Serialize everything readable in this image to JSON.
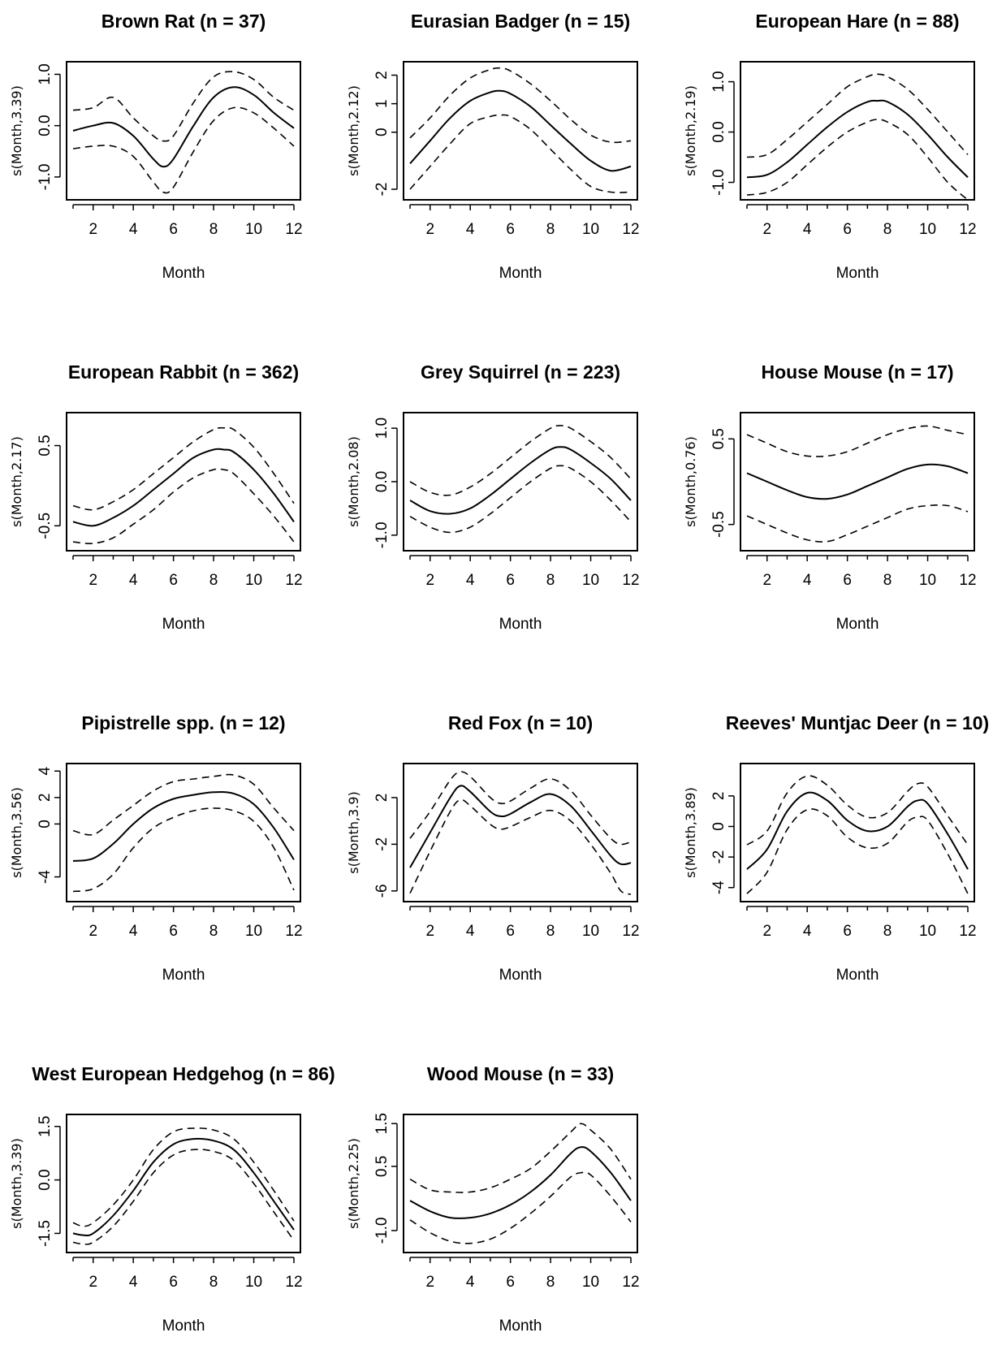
{
  "colors": {
    "background": "#ffffff",
    "ink": "#000000"
  },
  "chart_data": [
    {
      "type": "line",
      "title": "Brown Rat (n = 37)",
      "xlabel": "Month",
      "ylabel": "s(Month,3.39)",
      "xlim": [
        1,
        12
      ],
      "ylim": [
        -1.35,
        1.15
      ],
      "x_ticks": [
        2,
        4,
        6,
        8,
        10,
        12
      ],
      "y_ticks": [
        -1.0,
        0.0,
        1.0
      ],
      "y_tick_labels": [
        "-1.0",
        "0.0",
        "1.0"
      ],
      "grid": false,
      "legend": "none",
      "x": [
        1,
        2,
        3,
        4,
        5,
        5.5,
        6,
        7,
        8,
        9,
        10,
        11,
        12
      ],
      "series": [
        {
          "role": "fit",
          "style": "solid",
          "values": [
            -0.1,
            0.0,
            0.05,
            -0.2,
            -0.65,
            -0.8,
            -0.65,
            0.0,
            0.55,
            0.75,
            0.6,
            0.25,
            -0.05
          ]
        },
        {
          "role": "upper",
          "style": "dashed",
          "values": [
            0.3,
            0.35,
            0.55,
            0.15,
            -0.2,
            -0.3,
            -0.2,
            0.45,
            0.95,
            1.05,
            0.9,
            0.55,
            0.3
          ]
        },
        {
          "role": "lower",
          "style": "dashed",
          "values": [
            -0.45,
            -0.4,
            -0.4,
            -0.6,
            -1.1,
            -1.3,
            -1.2,
            -0.5,
            0.1,
            0.35,
            0.25,
            -0.05,
            -0.4
          ]
        }
      ]
    },
    {
      "type": "line",
      "title": "Eurasian Badger (n = 15)",
      "xlabel": "Month",
      "ylabel": "s(Month,2.12)",
      "xlim": [
        1,
        12
      ],
      "ylim": [
        -2.2,
        2.3
      ],
      "x_ticks": [
        2,
        4,
        6,
        8,
        10,
        12
      ],
      "y_ticks": [
        -2,
        0,
        1,
        2
      ],
      "y_tick_labels": [
        "-2",
        "0",
        "1",
        "2"
      ],
      "grid": false,
      "legend": "none",
      "x": [
        1,
        2,
        3,
        4,
        5,
        5.5,
        6,
        7,
        8,
        9,
        10,
        11,
        12
      ],
      "series": [
        {
          "role": "fit",
          "style": "solid",
          "values": [
            -1.1,
            -0.3,
            0.5,
            1.1,
            1.4,
            1.45,
            1.35,
            0.9,
            0.25,
            -0.4,
            -1.0,
            -1.35,
            -1.2
          ]
        },
        {
          "role": "upper",
          "style": "dashed",
          "values": [
            -0.2,
            0.5,
            1.3,
            1.9,
            2.2,
            2.25,
            2.15,
            1.7,
            1.1,
            0.45,
            -0.1,
            -0.35,
            -0.3
          ]
        },
        {
          "role": "lower",
          "style": "dashed",
          "values": [
            -2.0,
            -1.2,
            -0.4,
            0.3,
            0.55,
            0.6,
            0.55,
            0.1,
            -0.6,
            -1.3,
            -1.9,
            -2.1,
            -2.1
          ]
        }
      ]
    },
    {
      "type": "line",
      "title": "European Hare (n = 88)",
      "xlabel": "Month",
      "ylabel": "s(Month,2.19)",
      "xlim": [
        1,
        12
      ],
      "ylim": [
        -1.25,
        1.3
      ],
      "x_ticks": [
        2,
        4,
        6,
        8,
        10,
        12
      ],
      "y_ticks": [
        -1.0,
        0.0,
        1.0
      ],
      "y_tick_labels": [
        "-1.0",
        "0.0",
        "1.0"
      ],
      "grid": false,
      "legend": "none",
      "x": [
        1,
        2,
        3,
        4,
        5,
        6,
        7,
        7.5,
        8,
        9,
        10,
        11,
        12
      ],
      "series": [
        {
          "role": "fit",
          "style": "solid",
          "values": [
            -0.9,
            -0.85,
            -0.6,
            -0.25,
            0.1,
            0.4,
            0.6,
            0.62,
            0.6,
            0.35,
            -0.05,
            -0.5,
            -0.9
          ]
        },
        {
          "role": "upper",
          "style": "dashed",
          "values": [
            -0.5,
            -0.45,
            -0.15,
            0.2,
            0.55,
            0.9,
            1.1,
            1.15,
            1.1,
            0.85,
            0.45,
            0.0,
            -0.45
          ]
        },
        {
          "role": "lower",
          "style": "dashed",
          "values": [
            -1.25,
            -1.2,
            -1.0,
            -0.65,
            -0.3,
            0.0,
            0.2,
            0.25,
            0.2,
            -0.05,
            -0.5,
            -1.0,
            -1.35
          ]
        }
      ]
    },
    {
      "type": "line",
      "title": "European Rabbit (n = 362)",
      "xlabel": "Month",
      "ylabel": "s(Month,2.17)",
      "xlim": [
        1,
        12
      ],
      "ylim": [
        -0.75,
        0.85
      ],
      "x_ticks": [
        2,
        4,
        6,
        8,
        10,
        12
      ],
      "y_ticks": [
        -0.5,
        0.5
      ],
      "y_tick_labels": [
        "-0.5",
        "0.5"
      ],
      "grid": false,
      "legend": "none",
      "x": [
        1,
        2,
        3,
        4,
        5,
        6,
        7,
        8,
        8.5,
        9,
        10,
        11,
        12
      ],
      "series": [
        {
          "role": "fit",
          "style": "solid",
          "values": [
            -0.45,
            -0.5,
            -0.4,
            -0.25,
            -0.05,
            0.15,
            0.35,
            0.45,
            0.45,
            0.42,
            0.2,
            -0.1,
            -0.45
          ]
        },
        {
          "role": "upper",
          "style": "dashed",
          "values": [
            -0.25,
            -0.3,
            -0.2,
            -0.05,
            0.15,
            0.35,
            0.55,
            0.7,
            0.72,
            0.7,
            0.48,
            0.15,
            -0.22
          ]
        },
        {
          "role": "lower",
          "style": "dashed",
          "values": [
            -0.7,
            -0.72,
            -0.65,
            -0.48,
            -0.3,
            -0.08,
            0.1,
            0.2,
            0.2,
            0.15,
            -0.1,
            -0.38,
            -0.7
          ]
        }
      ]
    },
    {
      "type": "line",
      "title": "Grey Squirrel (n = 223)",
      "xlabel": "Month",
      "ylabel": "s(Month,2.08)",
      "xlim": [
        1,
        12
      ],
      "ylim": [
        -1.2,
        1.2
      ],
      "x_ticks": [
        2,
        4,
        6,
        8,
        10,
        12
      ],
      "y_ticks": [
        -1.0,
        0.0,
        1.0
      ],
      "y_tick_labels": [
        "-1.0",
        "0.0",
        "1.0"
      ],
      "grid": false,
      "legend": "none",
      "x": [
        1,
        2,
        3,
        4,
        5,
        6,
        7,
        8,
        8.5,
        9,
        10,
        11,
        12
      ],
      "series": [
        {
          "role": "fit",
          "style": "solid",
          "values": [
            -0.35,
            -0.55,
            -0.6,
            -0.5,
            -0.25,
            0.05,
            0.35,
            0.6,
            0.65,
            0.6,
            0.35,
            0.05,
            -0.35
          ]
        },
        {
          "role": "upper",
          "style": "dashed",
          "values": [
            0.0,
            -0.2,
            -0.25,
            -0.1,
            0.15,
            0.45,
            0.75,
            1.0,
            1.05,
            1.0,
            0.75,
            0.45,
            0.05
          ]
        },
        {
          "role": "lower",
          "style": "dashed",
          "values": [
            -0.65,
            -0.85,
            -0.95,
            -0.85,
            -0.6,
            -0.3,
            0.0,
            0.25,
            0.3,
            0.25,
            0.0,
            -0.35,
            -0.75
          ]
        }
      ]
    },
    {
      "type": "line",
      "title": "House Mouse (n = 17)",
      "xlabel": "Month",
      "ylabel": "s(Month,0.76)",
      "xlim": [
        1,
        12
      ],
      "ylim": [
        -0.75,
        0.75
      ],
      "x_ticks": [
        2,
        4,
        6,
        8,
        10,
        12
      ],
      "y_ticks": [
        -0.5,
        0.5
      ],
      "y_tick_labels": [
        "-0.5",
        "0.5"
      ],
      "grid": false,
      "legend": "none",
      "x": [
        1,
        2,
        3,
        4,
        5,
        6,
        7,
        8,
        9,
        10,
        11,
        12
      ],
      "series": [
        {
          "role": "fit",
          "style": "solid",
          "values": [
            0.1,
            0.0,
            -0.1,
            -0.18,
            -0.2,
            -0.15,
            -0.05,
            0.05,
            0.15,
            0.2,
            0.18,
            0.1
          ]
        },
        {
          "role": "upper",
          "style": "dashed",
          "values": [
            0.55,
            0.45,
            0.35,
            0.3,
            0.3,
            0.35,
            0.45,
            0.55,
            0.62,
            0.65,
            0.6,
            0.55
          ]
        },
        {
          "role": "lower",
          "style": "dashed",
          "values": [
            -0.4,
            -0.5,
            -0.6,
            -0.68,
            -0.7,
            -0.62,
            -0.52,
            -0.42,
            -0.32,
            -0.28,
            -0.28,
            -0.35
          ]
        }
      ]
    },
    {
      "type": "line",
      "title": "Pipistrelle spp. (n = 12)",
      "xlabel": "Month",
      "ylabel": "s(Month,3.56)",
      "xlim": [
        1,
        12
      ],
      "ylim": [
        -5.5,
        4.2
      ],
      "x_ticks": [
        2,
        4,
        6,
        8,
        10,
        12
      ],
      "y_ticks": [
        -4,
        0,
        2,
        4
      ],
      "y_tick_labels": [
        "-4",
        "0",
        "2",
        "4"
      ],
      "grid": false,
      "legend": "none",
      "x": [
        1,
        2,
        3,
        4,
        5,
        6,
        7,
        8,
        9,
        10,
        11,
        12
      ],
      "series": [
        {
          "role": "fit",
          "style": "solid",
          "values": [
            -2.8,
            -2.6,
            -1.5,
            0.0,
            1.2,
            1.9,
            2.2,
            2.4,
            2.3,
            1.5,
            -0.3,
            -2.7
          ]
        },
        {
          "role": "upper",
          "style": "dashed",
          "values": [
            -0.5,
            -0.8,
            0.3,
            1.4,
            2.5,
            3.2,
            3.4,
            3.6,
            3.7,
            3.0,
            1.2,
            -0.5
          ]
        },
        {
          "role": "lower",
          "style": "dashed",
          "values": [
            -5.1,
            -4.9,
            -3.8,
            -1.8,
            -0.3,
            0.5,
            1.0,
            1.2,
            1.0,
            0.2,
            -1.8,
            -5.0
          ]
        }
      ]
    },
    {
      "type": "line",
      "title": "Red Fox (n = 10)",
      "xlabel": "Month",
      "ylabel": "s(Month,3.9)",
      "xlim": [
        1,
        12
      ],
      "ylim": [
        -6.5,
        4.5
      ],
      "x_ticks": [
        2,
        4,
        6,
        8,
        10,
        12
      ],
      "y_ticks": [
        -6,
        -2,
        2
      ],
      "y_tick_labels": [
        "-6",
        "-2",
        "2"
      ],
      "grid": false,
      "legend": "none",
      "x": [
        1,
        2,
        3,
        3.5,
        4,
        5,
        5.5,
        6,
        7,
        8,
        9,
        10,
        11,
        11.5,
        12
      ],
      "series": [
        {
          "role": "fit",
          "style": "solid",
          "values": [
            -4.0,
            -1.0,
            2.0,
            3.0,
            2.5,
            0.8,
            0.4,
            0.6,
            1.6,
            2.3,
            1.3,
            -0.8,
            -3.0,
            -3.7,
            -3.6
          ]
        },
        {
          "role": "upper",
          "style": "dashed",
          "values": [
            -1.5,
            0.8,
            3.5,
            4.2,
            3.8,
            2.0,
            1.5,
            1.7,
            2.8,
            3.6,
            2.6,
            0.5,
            -1.5,
            -2.0,
            -1.8
          ]
        },
        {
          "role": "lower",
          "style": "dashed",
          "values": [
            -6.2,
            -2.6,
            0.8,
            1.8,
            1.3,
            -0.3,
            -0.7,
            -0.5,
            0.3,
            0.9,
            0.0,
            -2.0,
            -4.5,
            -6.0,
            -6.3
          ]
        }
      ]
    },
    {
      "type": "line",
      "title": "Reeves' Muntjac Deer (n = 10)",
      "xlabel": "Month",
      "ylabel": "s(Month,3.89)",
      "xlim": [
        1,
        12
      ],
      "ylim": [
        -4.6,
        3.8
      ],
      "x_ticks": [
        2,
        4,
        6,
        8,
        10,
        12
      ],
      "y_ticks": [
        -4,
        -2,
        0,
        2
      ],
      "y_tick_labels": [
        "-4",
        "-2",
        "0",
        "2"
      ],
      "grid": false,
      "legend": "none",
      "x": [
        1,
        2,
        3,
        4,
        5,
        6,
        7,
        8,
        9,
        9.5,
        10,
        11,
        12
      ],
      "series": [
        {
          "role": "fit",
          "style": "solid",
          "values": [
            -2.8,
            -1.5,
            1.0,
            2.2,
            1.7,
            0.4,
            -0.3,
            0.0,
            1.3,
            1.7,
            1.5,
            -0.5,
            -2.8
          ]
        },
        {
          "role": "upper",
          "style": "dashed",
          "values": [
            -1.2,
            -0.3,
            2.2,
            3.3,
            2.7,
            1.4,
            0.6,
            0.9,
            2.3,
            2.8,
            2.6,
            0.7,
            -1.2
          ]
        },
        {
          "role": "lower",
          "style": "dashed",
          "values": [
            -4.4,
            -3.0,
            -0.2,
            1.1,
            0.7,
            -0.7,
            -1.4,
            -1.1,
            0.3,
            0.6,
            0.4,
            -1.8,
            -4.4
          ]
        }
      ]
    },
    {
      "type": "line",
      "title": "West European Hedgehog (n = 86)",
      "xlabel": "Month",
      "ylabel": "s(Month,3.39)",
      "xlim": [
        1,
        12
      ],
      "ylim": [
        -1.9,
        1.7
      ],
      "x_ticks": [
        2,
        4,
        6,
        8,
        10,
        12
      ],
      "y_ticks": [
        -1.5,
        0.0,
        1.5
      ],
      "y_tick_labels": [
        "-1.5",
        "0.0",
        "1.5"
      ],
      "grid": false,
      "legend": "none",
      "x": [
        1,
        1.5,
        2,
        3,
        4,
        5,
        6,
        7,
        8,
        9,
        10,
        11,
        12
      ],
      "series": [
        {
          "role": "fit",
          "style": "solid",
          "values": [
            -1.5,
            -1.55,
            -1.5,
            -1.0,
            -0.3,
            0.5,
            1.0,
            1.15,
            1.1,
            0.85,
            0.2,
            -0.6,
            -1.4
          ]
        },
        {
          "role": "upper",
          "style": "dashed",
          "values": [
            -1.2,
            -1.3,
            -1.2,
            -0.7,
            0.0,
            0.85,
            1.35,
            1.45,
            1.4,
            1.15,
            0.5,
            -0.3,
            -1.15
          ]
        },
        {
          "role": "lower",
          "style": "dashed",
          "values": [
            -1.75,
            -1.8,
            -1.75,
            -1.3,
            -0.6,
            0.2,
            0.7,
            0.85,
            0.8,
            0.55,
            -0.1,
            -0.9,
            -1.7
          ]
        }
      ]
    },
    {
      "type": "line",
      "title": "Wood Mouse (n = 33)",
      "xlabel": "Month",
      "ylabel": "s(Month,2.25)",
      "xlim": [
        1,
        12
      ],
      "ylim": [
        -1.4,
        1.6
      ],
      "x_ticks": [
        2,
        4,
        6,
        8,
        10,
        12
      ],
      "y_ticks": [
        -1.0,
        0.5,
        1.5
      ],
      "y_tick_labels": [
        "-1.0",
        "0.5",
        "1.5"
      ],
      "grid": false,
      "legend": "none",
      "x": [
        1,
        2,
        3,
        4,
        5,
        6,
        7,
        8,
        9,
        9.5,
        10,
        11,
        12
      ],
      "series": [
        {
          "role": "fit",
          "style": "solid",
          "values": [
            -0.3,
            -0.55,
            -0.7,
            -0.7,
            -0.6,
            -0.4,
            -0.1,
            0.3,
            0.8,
            0.95,
            0.85,
            0.35,
            -0.3
          ]
        },
        {
          "role": "upper",
          "style": "dashed",
          "values": [
            0.2,
            -0.05,
            -0.1,
            -0.1,
            0.0,
            0.2,
            0.45,
            0.85,
            1.3,
            1.5,
            1.35,
            0.9,
            0.2
          ]
        },
        {
          "role": "lower",
          "style": "dashed",
          "values": [
            -0.75,
            -1.05,
            -1.25,
            -1.3,
            -1.2,
            -0.95,
            -0.6,
            -0.2,
            0.25,
            0.35,
            0.3,
            -0.2,
            -0.8
          ]
        }
      ]
    }
  ]
}
